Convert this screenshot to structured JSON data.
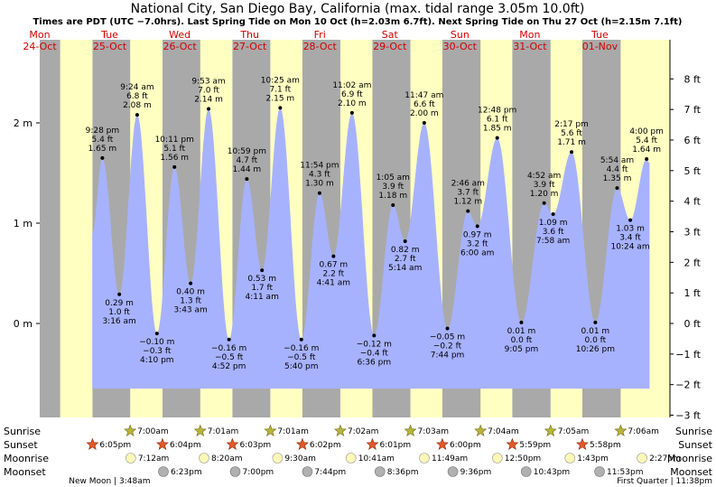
{
  "chart_data": {
    "type": "area",
    "title": "National City, San Diego Bay, California (max. tidal range 3.05m 10.0ft)",
    "subtitle": "Times are PDT (UTC −7.0hrs). Last Spring Tide on Mon 10 Oct (h=2.03m 6.7ft). Next Spring Tide on Thu 27 Oct (h=2.15m 7.1ft)",
    "ylabel_left": "m",
    "ylabel_right": "ft",
    "ylim_m": [
      -0.9,
      2.65
    ],
    "left_ticks": [
      {
        "v": 0,
        "label": "0 m"
      },
      {
        "v": 1,
        "label": "1 m"
      },
      {
        "v": 2,
        "label": "2 m"
      }
    ],
    "right_ticks": [
      {
        "ft": -3,
        "label": "−3 ft"
      },
      {
        "ft": -2,
        "label": "−2 ft"
      },
      {
        "ft": -1,
        "label": "−1 ft"
      },
      {
        "ft": 0,
        "label": "0 ft"
      },
      {
        "ft": 1,
        "label": "1 ft"
      },
      {
        "ft": 2,
        "label": "2 ft"
      },
      {
        "ft": 3,
        "label": "3 ft"
      },
      {
        "ft": 4,
        "label": "4 ft"
      },
      {
        "ft": 5,
        "label": "5 ft"
      },
      {
        "ft": 6,
        "label": "6 ft"
      },
      {
        "ft": 7,
        "label": "7 ft"
      },
      {
        "ft": 8,
        "label": "8 ft"
      }
    ],
    "days": [
      {
        "day": "Mon",
        "date": "24-Oct"
      },
      {
        "day": "Tue",
        "date": "25-Oct"
      },
      {
        "day": "Wed",
        "date": "26-Oct"
      },
      {
        "day": "Thu",
        "date": "27-Oct"
      },
      {
        "day": "Fri",
        "date": "28-Oct"
      },
      {
        "day": "Sat",
        "date": "29-Oct"
      },
      {
        "day": "Sun",
        "date": "30-Oct"
      },
      {
        "day": "Mon",
        "date": "31-Oct"
      },
      {
        "day": "Tue",
        "date": "01-Nov"
      }
    ],
    "x_range_hours": [
      0,
      216
    ],
    "series": [
      {
        "name": "tide height",
        "points": [
          {
            "h": 21.47,
            "m": 1.65,
            "kind": "high",
            "time": "9:28 pm",
            "ft": "5.4 ft",
            "mt": "1.65 m"
          },
          {
            "h": 27.27,
            "m": 0.29,
            "kind": "low",
            "time": "3:16 am",
            "ft": "1.0 ft",
            "mt": "0.29 m"
          },
          {
            "h": 33.4,
            "m": 2.08,
            "kind": "high",
            "time": "9:24 am",
            "ft": "6.8 ft",
            "mt": "2.08 m"
          },
          {
            "h": 40.17,
            "m": -0.1,
            "kind": "low",
            "time": "4:10 pm",
            "ft": "−0.3 ft",
            "mt": "−0.10 m"
          },
          {
            "h": 46.18,
            "m": 1.56,
            "kind": "high",
            "time": "10:11 pm",
            "ft": "5.1 ft",
            "mt": "1.56 m"
          },
          {
            "h": 51.72,
            "m": 0.4,
            "kind": "low",
            "time": "3:43 am",
            "ft": "1.3 ft",
            "mt": "0.40 m"
          },
          {
            "h": 57.88,
            "m": 2.14,
            "kind": "high",
            "time": "9:53 am",
            "ft": "7.0 ft",
            "mt": "2.14 m"
          },
          {
            "h": 64.87,
            "m": -0.16,
            "kind": "low",
            "time": "4:52 pm",
            "ft": "−0.5 ft",
            "mt": "−0.16 m"
          },
          {
            "h": 70.98,
            "m": 1.44,
            "kind": "high",
            "time": "10:59 pm",
            "ft": "4.7 ft",
            "mt": "1.44 m"
          },
          {
            "h": 76.18,
            "m": 0.53,
            "kind": "low",
            "time": "4:11 am",
            "ft": "1.7 ft",
            "mt": "0.53 m"
          },
          {
            "h": 82.42,
            "m": 2.15,
            "kind": "high",
            "time": "10:25 am",
            "ft": "7.1 ft",
            "mt": "2.15 m"
          },
          {
            "h": 89.67,
            "m": -0.16,
            "kind": "low",
            "time": "5:40 pm",
            "ft": "−0.5 ft",
            "mt": "−0.16 m"
          },
          {
            "h": 95.9,
            "m": 1.3,
            "kind": "high",
            "time": "11:54 pm",
            "ft": "4.3 ft",
            "mt": "1.30 m"
          },
          {
            "h": 100.68,
            "m": 0.67,
            "kind": "low",
            "time": "4:41 am",
            "ft": "2.2 ft",
            "mt": "0.67 m"
          },
          {
            "h": 107.03,
            "m": 2.1,
            "kind": "high",
            "time": "11:02 am",
            "ft": "6.9 ft",
            "mt": "2.10 m"
          },
          {
            "h": 114.6,
            "m": -0.12,
            "kind": "low",
            "time": "6:36 pm",
            "ft": "−0.4 ft",
            "mt": "−0.12 m"
          },
          {
            "h": 121.08,
            "m": 1.18,
            "kind": "high",
            "time": "1:05 am",
            "ft": "3.9 ft",
            "mt": "1.18 m"
          },
          {
            "h": 125.23,
            "m": 0.82,
            "kind": "low",
            "time": "5:14 am",
            "ft": "2.7 ft",
            "mt": "0.82 m"
          },
          {
            "h": 131.78,
            "m": 2.0,
            "kind": "high",
            "time": "11:47 am",
            "ft": "6.6 ft",
            "mt": "2.00 m"
          },
          {
            "h": 139.73,
            "m": -0.05,
            "kind": "low",
            "time": "7:44 pm",
            "ft": "−0.2 ft",
            "mt": "−0.05 m"
          },
          {
            "h": 146.77,
            "m": 1.12,
            "kind": "high",
            "time": "2:46 am",
            "ft": "3.7 ft",
            "mt": "1.12 m"
          },
          {
            "h": 150.0,
            "m": 0.97,
            "kind": "low",
            "time": "6:00 am",
            "ft": "3.2 ft",
            "mt": "0.97 m"
          },
          {
            "h": 156.8,
            "m": 1.85,
            "kind": "high",
            "time": "12:48 pm",
            "ft": "6.1 ft",
            "mt": "1.85 m"
          },
          {
            "h": 165.08,
            "m": 0.01,
            "kind": "low",
            "time": "9:05 pm",
            "ft": "0.0 ft",
            "mt": "0.01 m"
          },
          {
            "h": 172.87,
            "m": 1.2,
            "kind": "high",
            "time": "4:52 am",
            "ft": "3.9 ft",
            "mt": "1.20 m"
          },
          {
            "h": 175.97,
            "m": 1.09,
            "kind": "low",
            "time": "7:58 am",
            "ft": "3.6 ft",
            "mt": "1.09 m"
          },
          {
            "h": 182.28,
            "m": 1.71,
            "kind": "high",
            "time": "2:17 pm",
            "ft": "5.6 ft",
            "mt": "1.71 m"
          },
          {
            "h": 190.43,
            "m": 0.01,
            "kind": "low",
            "time": "10:26 pm",
            "ft": "0.0 ft",
            "mt": "0.01 m"
          },
          {
            "h": 197.9,
            "m": 1.35,
            "kind": "high",
            "time": "5:54 am",
            "ft": "4.4 ft",
            "mt": "1.35 m"
          },
          {
            "h": 202.4,
            "m": 1.03,
            "kind": "low",
            "time": "10:24 am",
            "ft": "3.4 ft",
            "mt": "1.03 m"
          },
          {
            "h": 208.0,
            "m": 1.64,
            "kind": "high",
            "time": "4:00 pm",
            "ft": "5.4 ft",
            "mt": "1.64 m"
          }
        ]
      }
    ],
    "curve_start": {
      "h": 18.0,
      "m": 0.9
    },
    "curve_end": {
      "h": 209.0,
      "m": 1.6
    },
    "daylight": [
      {
        "rise": 7.0,
        "set": 18.08
      },
      {
        "rise": 31.0,
        "set": 42.07
      },
      {
        "rise": 55.02,
        "set": 66.05
      },
      {
        "rise": 79.02,
        "set": 90.03
      },
      {
        "rise": 103.03,
        "set": 114.02
      },
      {
        "rise": 127.05,
        "set": 138.0
      },
      {
        "rise": 151.07,
        "set": 161.98
      },
      {
        "rise": 175.08,
        "set": 185.97
      },
      {
        "rise": 199.1,
        "set": 216.0
      }
    ],
    "legend_rows": [
      "Sunrise",
      "Sunset",
      "Moonrise",
      "Moonset"
    ],
    "sunrise": [
      {
        "h": 31.0,
        "label": "7:00am"
      },
      {
        "h": 55.02,
        "label": "7:01am"
      },
      {
        "h": 79.02,
        "label": "7:01am"
      },
      {
        "h": 103.03,
        "label": "7:02am"
      },
      {
        "h": 127.05,
        "label": "7:03am"
      },
      {
        "h": 151.07,
        "label": "7:04am"
      },
      {
        "h": 175.08,
        "label": "7:05am"
      },
      {
        "h": 199.1,
        "label": "7:06am"
      }
    ],
    "sunset": [
      {
        "h": 18.08,
        "label": "6:05pm"
      },
      {
        "h": 42.07,
        "label": "6:04pm"
      },
      {
        "h": 66.05,
        "label": "6:03pm"
      },
      {
        "h": 90.03,
        "label": "6:02pm"
      },
      {
        "h": 114.02,
        "label": "6:01pm"
      },
      {
        "h": 138.0,
        "label": "6:00pm"
      },
      {
        "h": 161.98,
        "label": "5:59pm"
      },
      {
        "h": 185.97,
        "label": "5:58pm"
      }
    ],
    "moonrise": [
      {
        "h": 31.2,
        "label": "7:12am"
      },
      {
        "h": 56.33,
        "label": "8:20am"
      },
      {
        "h": 81.5,
        "label": "9:30am"
      },
      {
        "h": 106.68,
        "label": "10:41am"
      },
      {
        "h": 131.82,
        "label": "11:49am"
      },
      {
        "h": 156.83,
        "label": "12:50pm"
      },
      {
        "h": 181.72,
        "label": "1:43pm"
      },
      {
        "h": 206.45,
        "label": "2:27pm"
      }
    ],
    "moonset": [
      {
        "h": 42.38,
        "label": "6:23pm"
      },
      {
        "h": 67.0,
        "label": "7:00pm"
      },
      {
        "h": 91.73,
        "label": "7:44pm"
      },
      {
        "h": 116.6,
        "label": "8:36pm"
      },
      {
        "h": 141.6,
        "label": "9:36pm"
      },
      {
        "h": 166.72,
        "label": "10:43pm"
      },
      {
        "h": 191.88,
        "label": "11:53pm"
      }
    ],
    "moon_phases": [
      {
        "h": 3.8,
        "label": "New Moon | 3:48am"
      },
      {
        "h": 191.63,
        "label": "First Quarter | 11:38pm"
      }
    ],
    "colors": {
      "night": "#a9a9a9",
      "day": "#ffffc2",
      "tide": "#a7b2ff",
      "day_label": "#d00000",
      "sun_rise": "#b7b43a",
      "sun_set": "#e05a2a",
      "moon_rise": "#fdf7b8",
      "moon_set": "#b0b0b0"
    }
  }
}
